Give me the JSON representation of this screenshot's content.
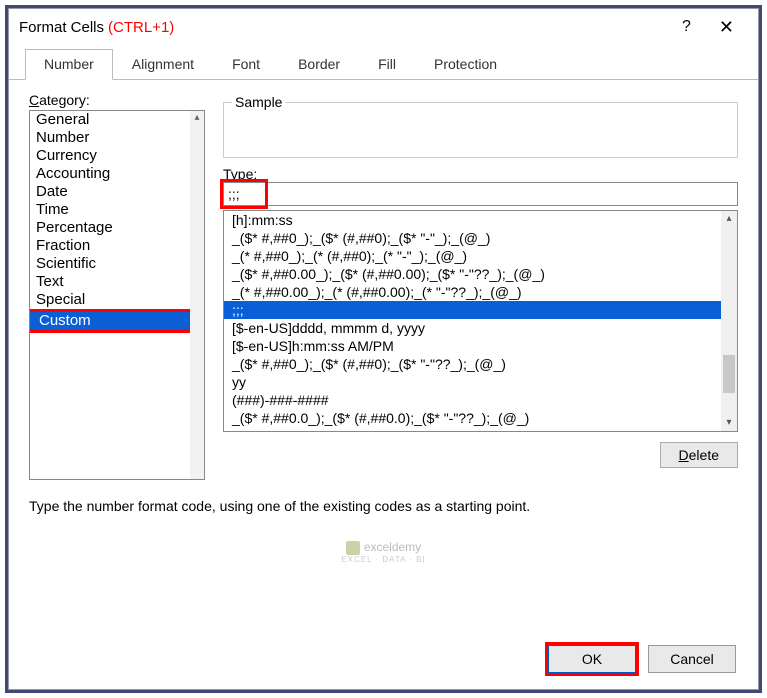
{
  "window": {
    "title": "Format Cells",
    "shortcut": "(CTRL+1)",
    "help_glyph": "?",
    "close_glyph": "✕"
  },
  "tabs": [
    "Number",
    "Alignment",
    "Font",
    "Border",
    "Fill",
    "Protection"
  ],
  "active_tab": 0,
  "category": {
    "label_pre": "C",
    "label_rest": "ategory:",
    "items": [
      "General",
      "Number",
      "Currency",
      "Accounting",
      "Date",
      "Time",
      "Percentage",
      "Fraction",
      "Scientific",
      "Text",
      "Special",
      "Custom"
    ],
    "selected_index": 11,
    "highlight_index": 11
  },
  "sample": {
    "label": "Sample",
    "value": ""
  },
  "type": {
    "label_pre": "T",
    "label_rest": "ype:",
    "value": ";;;",
    "red_box": true
  },
  "type_list": {
    "items": [
      "[h]:mm:ss",
      "_($* #,##0_);_($* (#,##0);_($* \"-\"_);_(@_)",
      "_(* #,##0_);_(* (#,##0);_(* \"-\"_);_(@_)",
      "_($* #,##0.00_);_($* (#,##0.00);_($* \"-\"??_);_(@_)",
      "_(* #,##0.00_);_(* (#,##0.00);_(* \"-\"??_);_(@_)",
      ";;;",
      "[$-en-US]dddd, mmmm d, yyyy",
      "[$-en-US]h:mm:ss AM/PM",
      "_($* #,##0_);_($* (#,##0);_($* \"-\"??_);_(@_)",
      "yy",
      "(###)-###-####",
      "_($* #,##0.0_);_($* (#,##0.0);_($* \"-\"??_);_(@_)"
    ],
    "selected_index": 5
  },
  "buttons": {
    "delete_pre": "D",
    "delete_rest": "elete",
    "ok": "OK",
    "cancel": "Cancel"
  },
  "hint": "Type the number format code, using one of the existing codes as a starting point.",
  "watermark": {
    "name": "exceldemy",
    "sub": "EXCEL · DATA · BI"
  },
  "colors": {
    "selection": "#0a5fd7",
    "highlight_border": "#ff0000",
    "border_outer": "#404873"
  }
}
